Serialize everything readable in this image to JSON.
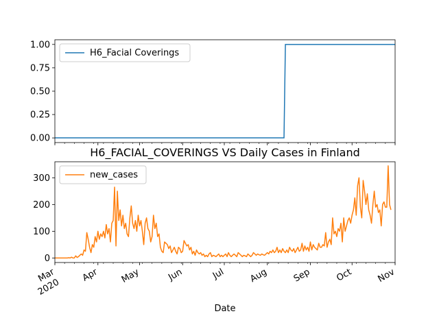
{
  "chart_data": [
    {
      "type": "line",
      "title": "",
      "xlabel": "",
      "ylabel": "",
      "ylim": [
        -0.05,
        1.05
      ],
      "xlim": [
        "2020-03-01",
        "2020-11-01"
      ],
      "yticks": [
        "0.00",
        "0.25",
        "0.50",
        "0.75",
        "1.00"
      ],
      "legend_position": "upper-left",
      "series": [
        {
          "name": "H6_Facial Coverings",
          "color": "#1f77b4",
          "x": [
            "2020-03-01",
            "2020-08-13",
            "2020-08-14",
            "2020-11-01"
          ],
          "values": [
            0,
            0,
            1,
            1
          ]
        }
      ]
    },
    {
      "type": "line",
      "title": "H6_FACIAL_COVERINGS VS Daily Cases in Finland",
      "xlabel": "Date",
      "ylabel": "",
      "ylim": [
        -17,
        360
      ],
      "xlim": [
        "2020-03-01",
        "2020-11-01"
      ],
      "yticks": [
        "0",
        "100",
        "200",
        "300"
      ],
      "xticks": [
        {
          "date": "2020-03-01",
          "label": "Mar",
          "sublabel": "2020"
        },
        {
          "date": "2020-04-01",
          "label": "Apr"
        },
        {
          "date": "2020-05-01",
          "label": "May"
        },
        {
          "date": "2020-06-01",
          "label": "Jun"
        },
        {
          "date": "2020-07-01",
          "label": "Jul"
        },
        {
          "date": "2020-08-01",
          "label": "Aug"
        },
        {
          "date": "2020-09-01",
          "label": "Sep"
        },
        {
          "date": "2020-10-01",
          "label": "Oct"
        },
        {
          "date": "2020-11-01",
          "label": "Nov"
        }
      ],
      "legend_position": "upper-left",
      "series": [
        {
          "name": "new_cases",
          "color": "#ff7f0e",
          "start_date": "2020-03-01",
          "values": [
            0,
            0,
            0,
            0,
            0,
            0,
            0,
            0,
            0,
            0,
            1,
            0,
            3,
            0,
            0,
            8,
            2,
            5,
            10,
            15,
            10,
            30,
            25,
            95,
            70,
            40,
            20,
            50,
            40,
            80,
            60,
            100,
            70,
            90,
            80,
            100,
            75,
            125,
            90,
            110,
            60,
            130,
            140,
            265,
            45,
            250,
            140,
            180,
            120,
            160,
            110,
            130,
            90,
            80,
            150,
            195,
            130,
            110,
            140,
            100,
            160,
            120,
            140,
            100,
            50,
            130,
            150,
            110,
            100,
            60,
            80,
            160,
            110,
            130,
            80,
            90,
            40,
            25,
            20,
            60,
            55,
            50,
            35,
            45,
            20,
            30,
            40,
            25,
            15,
            40,
            35,
            20,
            25,
            65,
            55,
            45,
            50,
            30,
            40,
            15,
            25,
            10,
            30,
            20,
            15,
            20,
            10,
            15,
            5,
            10,
            5,
            15,
            20,
            5,
            10,
            8,
            5,
            10,
            15,
            5,
            10,
            5,
            10,
            15,
            5,
            20,
            10,
            5,
            10,
            15,
            10,
            5,
            20,
            15,
            10,
            5,
            10,
            8,
            5,
            15,
            10,
            5,
            10,
            20,
            15,
            10,
            15,
            12,
            10,
            15,
            12,
            10,
            15,
            20,
            15,
            25,
            20,
            30,
            20,
            25,
            40,
            20,
            30,
            20,
            35,
            25,
            20,
            30,
            20,
            40,
            30,
            25,
            35,
            20,
            30,
            40,
            25,
            30,
            55,
            25,
            45,
            30,
            40,
            25,
            60,
            30,
            50,
            40,
            35,
            30,
            55,
            40,
            40,
            50,
            45,
            95,
            40,
            60,
            70,
            50,
            150,
            90,
            100,
            80,
            110,
            100,
            130,
            60,
            150,
            100,
            120,
            140,
            150,
            130,
            160,
            180,
            225,
            160,
            270,
            300,
            190,
            150,
            290,
            250,
            200,
            240,
            180,
            160,
            130,
            200,
            250,
            190,
            200,
            170,
            180,
            120,
            200,
            210,
            190,
            190,
            345,
            200,
            180
          ]
        }
      ]
    }
  ]
}
